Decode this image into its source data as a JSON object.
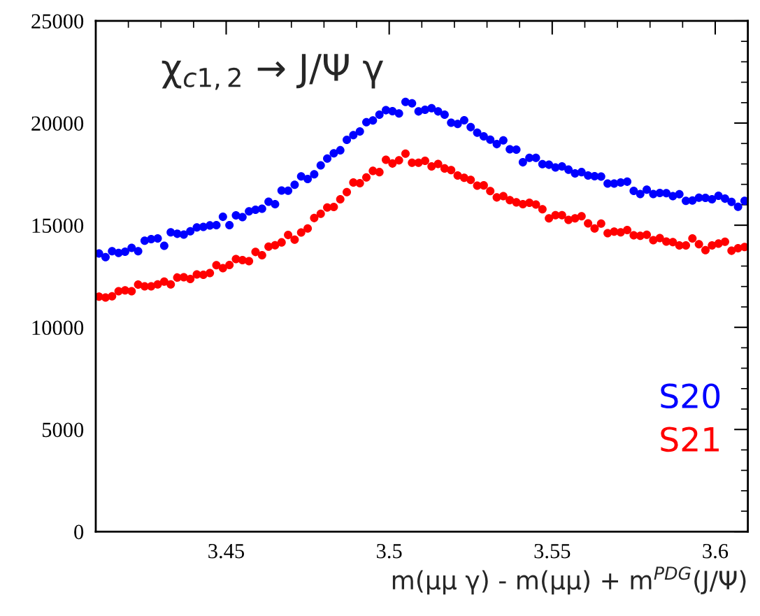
{
  "chart_data": {
    "type": "scatter",
    "title": "χ$_{c1,2}$ → J/Ψ γ",
    "xlabel": "m(μμ γ) - m(μμ) + m$^{PDG}$(J/Ψ)",
    "x": [
      3.411,
      3.413,
      3.415,
      3.417,
      3.419,
      3.421,
      3.423,
      3.425,
      3.427,
      3.429,
      3.431,
      3.433,
      3.435,
      3.437,
      3.439,
      3.441,
      3.443,
      3.445,
      3.447,
      3.449,
      3.451,
      3.453,
      3.455,
      3.457,
      3.459,
      3.461,
      3.463,
      3.465,
      3.467,
      3.469,
      3.471,
      3.473,
      3.475,
      3.477,
      3.479,
      3.481,
      3.483,
      3.485,
      3.487,
      3.489,
      3.491,
      3.493,
      3.495,
      3.497,
      3.499,
      3.501,
      3.503,
      3.505,
      3.507,
      3.509,
      3.511,
      3.513,
      3.515,
      3.517,
      3.519,
      3.521,
      3.523,
      3.525,
      3.527,
      3.529,
      3.531,
      3.533,
      3.535,
      3.537,
      3.539,
      3.541,
      3.543,
      3.545,
      3.547,
      3.549,
      3.551,
      3.553,
      3.555,
      3.557,
      3.559,
      3.561,
      3.563,
      3.565,
      3.567,
      3.569,
      3.571,
      3.573,
      3.575,
      3.577,
      3.579,
      3.581,
      3.583,
      3.585,
      3.587,
      3.589,
      3.591,
      3.593,
      3.595,
      3.597,
      3.599,
      3.601,
      3.603,
      3.605,
      3.607,
      3.609
    ],
    "series": [
      {
        "name": "S20",
        "color": "#0000ff",
        "values": [
          13620,
          13440,
          13730,
          13640,
          13700,
          13890,
          13730,
          14240,
          14320,
          14350,
          13990,
          14650,
          14580,
          14540,
          14700,
          14890,
          14920,
          14990,
          15000,
          15410,
          15000,
          15480,
          15400,
          15680,
          15760,
          15810,
          16150,
          16030,
          16700,
          16690,
          16980,
          17390,
          17260,
          17490,
          17930,
          18260,
          18520,
          18670,
          19180,
          19410,
          19590,
          20040,
          20130,
          20410,
          20630,
          20580,
          20470,
          21040,
          20970,
          20570,
          20650,
          20730,
          20570,
          20410,
          20020,
          19960,
          20140,
          19800,
          19530,
          19350,
          19190,
          18970,
          19150,
          18720,
          18700,
          18080,
          18300,
          18300,
          17990,
          17960,
          17830,
          17880,
          17720,
          17540,
          17600,
          17430,
          17400,
          17380,
          17040,
          17040,
          17090,
          17130,
          16680,
          16530,
          16740,
          16530,
          16580,
          16570,
          16420,
          16520,
          16190,
          16210,
          16350,
          16340,
          16270,
          16440,
          16300,
          16140,
          15900,
          16190
        ]
      },
      {
        "name": "S21",
        "color": "#ff0000",
        "values": [
          11500,
          11460,
          11520,
          11770,
          11810,
          11770,
          12090,
          12010,
          12010,
          12100,
          12240,
          12100,
          12440,
          12450,
          12370,
          12590,
          12570,
          12660,
          13040,
          12900,
          13050,
          13340,
          13290,
          13240,
          13690,
          13530,
          13950,
          14020,
          14160,
          14520,
          14290,
          14640,
          14840,
          15350,
          15560,
          15870,
          15890,
          16270,
          16620,
          17090,
          17060,
          17340,
          17660,
          17600,
          18200,
          18020,
          18180,
          18500,
          18060,
          18060,
          18150,
          17880,
          18000,
          17780,
          17700,
          17430,
          17320,
          17220,
          16940,
          16950,
          16670,
          16360,
          16420,
          16230,
          16120,
          16030,
          16100,
          16010,
          15780,
          15340,
          15490,
          15490,
          15260,
          15340,
          15440,
          15090,
          14840,
          15080,
          14610,
          14690,
          14650,
          14760,
          14510,
          14480,
          14530,
          14270,
          14370,
          14200,
          14170,
          14010,
          14010,
          14350,
          14070,
          13780,
          14010,
          14100,
          14190,
          13750,
          13870,
          13930
        ]
      }
    ],
    "xlim": [
      3.41,
      3.61
    ],
    "xticks": [
      3.45,
      3.5,
      3.55,
      3.6
    ],
    "ylim": [
      0,
      25000
    ],
    "yticks": [
      0,
      5000,
      10000,
      15000,
      20000,
      25000
    ],
    "marker": "circle",
    "grid": false,
    "legend": "bottom right"
  }
}
